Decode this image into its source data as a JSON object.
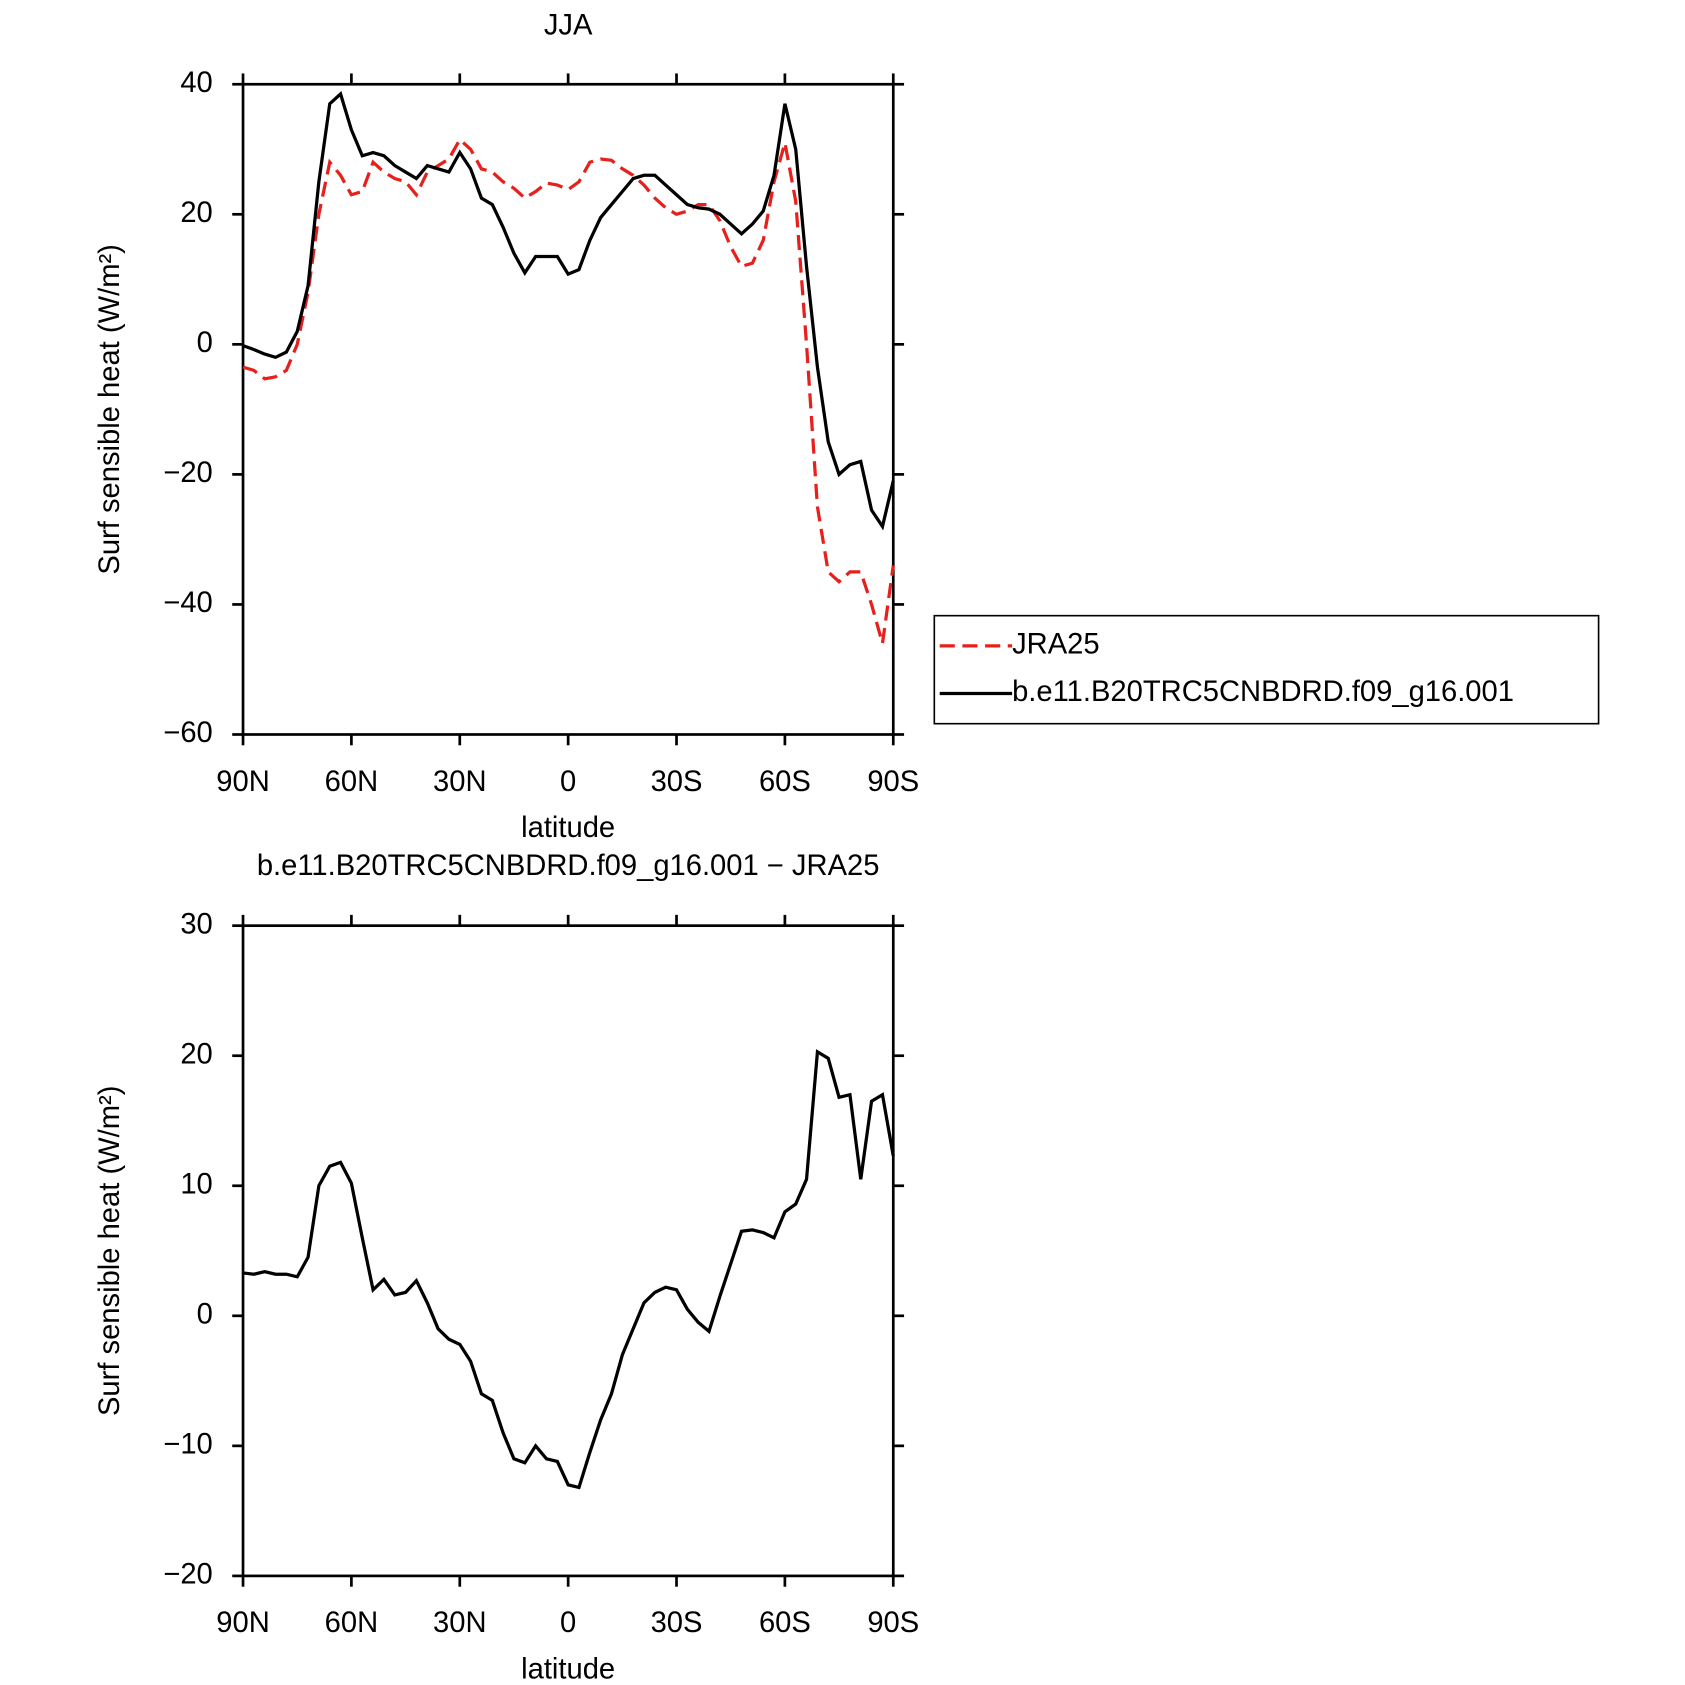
{
  "chart_data": [
    {
      "type": "line",
      "title": "JJA",
      "xlabel": "latitude",
      "ylabel": "Surf sensible heat (W/m²)",
      "x": [
        90,
        87,
        84,
        81,
        78,
        75,
        72,
        69,
        66,
        63,
        60,
        57,
        54,
        51,
        48,
        45,
        42,
        39,
        36,
        33,
        30,
        27,
        24,
        21,
        18,
        15,
        12,
        9,
        6,
        3,
        0,
        -3,
        -6,
        -9,
        -12,
        -15,
        -18,
        -21,
        -24,
        -27,
        -30,
        -33,
        -36,
        -39,
        -42,
        -45,
        -48,
        -51,
        -54,
        -57,
        -60,
        -63,
        -66,
        -69,
        -72,
        -75,
        -78,
        -81,
        -84,
        -87,
        -90
      ],
      "series": [
        {
          "name": "JRA25",
          "color": "#e8201c",
          "linestyle": "dashed",
          "values": [
            -3.5,
            -4,
            -5.3,
            -5,
            -4,
            0,
            8,
            20,
            28,
            26,
            23,
            23.5,
            28,
            26.5,
            25.5,
            25,
            23,
            26.5,
            27.5,
            28.5,
            31.5,
            30,
            27,
            26.5,
            25,
            24,
            22.5,
            23.5,
            24.8,
            24.5,
            23.8,
            25,
            28,
            28.5,
            28.3,
            27,
            26,
            24.5,
            22.5,
            21,
            20,
            20.5,
            21.5,
            21.5,
            19,
            15,
            12,
            12.5,
            16,
            25,
            31,
            22,
            0,
            -25,
            -35,
            -36.5,
            -35,
            -35,
            -40,
            -46,
            -34
          ]
        },
        {
          "name": "b.e11.B20TRC5CNBDRD.f09_g16.001",
          "color": "#000000",
          "linestyle": "solid",
          "values": [
            -0.2,
            -0.8,
            -1.5,
            -2,
            -1.2,
            2,
            9,
            25,
            37,
            38.5,
            33,
            29,
            29.5,
            29,
            27.5,
            26.5,
            25.5,
            27.5,
            27,
            26.5,
            29.5,
            27,
            22.5,
            21.5,
            18,
            14,
            11,
            13.5,
            13.5,
            13.5,
            10.8,
            11.5,
            16,
            19.5,
            21.5,
            23.5,
            25.5,
            26,
            26,
            24.5,
            23,
            21.5,
            21,
            20.8,
            20,
            18.5,
            17,
            18.5,
            20.5,
            26,
            37,
            30,
            12,
            -3.5,
            -15,
            -20,
            -18.5,
            -18,
            -25.5,
            -28,
            -21
          ]
        }
      ],
      "xlim": [
        90,
        -90
      ],
      "xticks": [
        {
          "value": 90,
          "label": "90N"
        },
        {
          "value": 60,
          "label": "60N"
        },
        {
          "value": 30,
          "label": "30N"
        },
        0,
        {
          "value": -30,
          "label": "30S"
        },
        {
          "value": -60,
          "label": "60S"
        },
        {
          "value": -90,
          "label": "90S"
        }
      ],
      "ylim": [
        -60,
        40
      ],
      "yticks": [
        {
          "value": -60,
          "label": "−60"
        },
        {
          "value": -40,
          "label": "−40"
        },
        {
          "value": -20,
          "label": "−20"
        },
        0,
        20,
        40
      ],
      "legend": "outside right"
    },
    {
      "type": "line",
      "title": "b.e11.B20TRC5CNBDRD.f09_g16.001 − JRA25",
      "xlabel": "latitude",
      "ylabel": "Surf sensible heat (W/m²)",
      "x": [
        90,
        87,
        84,
        81,
        78,
        75,
        72,
        69,
        66,
        63,
        60,
        57,
        54,
        51,
        48,
        45,
        42,
        39,
        36,
        33,
        30,
        27,
        24,
        21,
        18,
        15,
        12,
        9,
        6,
        3,
        0,
        -3,
        -6,
        -9,
        -12,
        -15,
        -18,
        -21,
        -24,
        -27,
        -30,
        -33,
        -36,
        -39,
        -42,
        -45,
        -48,
        -51,
        -54,
        -57,
        -60,
        -63,
        -66,
        -69,
        -72,
        -75,
        -78,
        -81,
        -84,
        -87,
        -90
      ],
      "series": [
        {
          "color": "#000000",
          "linestyle": "solid",
          "values": [
            3.3,
            3.2,
            3.4,
            3.2,
            3.2,
            3,
            4.5,
            10,
            11.5,
            11.8,
            10.2,
            6,
            2,
            2.8,
            1.6,
            1.8,
            2.7,
            1,
            -1,
            -1.8,
            -2.2,
            -3.5,
            -6,
            -6.5,
            -9,
            -11,
            -11.3,
            -10,
            -11,
            -11.2,
            -13,
            -13.2,
            -10.5,
            -8,
            -6,
            -3,
            -1,
            1,
            1.8,
            2.2,
            2,
            0.5,
            -0.5,
            -1.2,
            1.5,
            4,
            6.5,
            6.6,
            6.4,
            6,
            8,
            8.6,
            10.5,
            20.3,
            19.8,
            16.8,
            17,
            10.5,
            16.5,
            17,
            12.3
          ]
        }
      ],
      "xlim": [
        90,
        -90
      ],
      "xticks": [
        {
          "value": 90,
          "label": "90N"
        },
        {
          "value": 60,
          "label": "60N"
        },
        {
          "value": 30,
          "label": "30N"
        },
        0,
        {
          "value": -30,
          "label": "30S"
        },
        {
          "value": -60,
          "label": "60S"
        },
        {
          "value": -90,
          "label": "90S"
        }
      ],
      "ylim": [
        -20,
        30
      ],
      "yticks": [
        {
          "value": -20,
          "label": "−20"
        },
        {
          "value": -10,
          "label": "−10"
        },
        0,
        10,
        20,
        30
      ]
    }
  ]
}
